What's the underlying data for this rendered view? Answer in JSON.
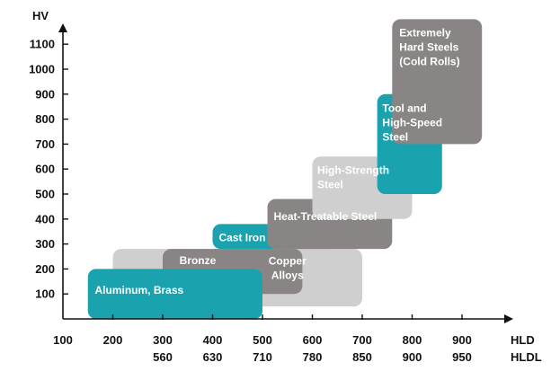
{
  "chart_data": {
    "type": "range-box",
    "title": "",
    "ylabel": "HV",
    "xlabels": [
      "HLD",
      "HLDL"
    ],
    "y_ticks": [
      100,
      200,
      300,
      400,
      500,
      600,
      700,
      800,
      900,
      1000,
      1100
    ],
    "x_ticks_hld": [
      100,
      200,
      300,
      400,
      500,
      600,
      700,
      800,
      900
    ],
    "x_ticks_hldl": [
      "",
      "",
      560,
      630,
      710,
      780,
      850,
      900,
      950
    ],
    "ylim": [
      0,
      1200
    ],
    "xlim_hld": [
      100,
      1000
    ],
    "colors": {
      "teal": "#1aa3ae",
      "light_gray": "#cfcfcf",
      "dark_gray": "#8a8585",
      "axis": "#111111"
    },
    "series": [
      {
        "label": [
          "Copper",
          "Alloys"
        ],
        "hld_range": [
          200,
          700
        ],
        "hv_range": [
          50,
          280
        ],
        "color": "light_gray"
      },
      {
        "label": [
          "Bronze"
        ],
        "hld_range": [
          300,
          580
        ],
        "hv_range": [
          100,
          280
        ],
        "color": "dark_gray"
      },
      {
        "label": [
          "Aluminum, Brass"
        ],
        "hld_range": [
          150,
          500
        ],
        "hv_range": [
          0,
          200
        ],
        "color": "teal"
      },
      {
        "label": [
          "Cast Iron"
        ],
        "hld_range": [
          400,
          650
        ],
        "hv_range": [
          280,
          380
        ],
        "color": "teal"
      },
      {
        "label": [
          "Heat-Treatable Steel"
        ],
        "hld_range": [
          510,
          760
        ],
        "hv_range": [
          280,
          480
        ],
        "color": "dark_gray"
      },
      {
        "label": [
          "High-Strength",
          "Steel"
        ],
        "hld_range": [
          600,
          800
        ],
        "hv_range": [
          400,
          650
        ],
        "color": "light_gray"
      },
      {
        "label": [
          "Tool and",
          "High-Speed",
          "Steel"
        ],
        "hld_range": [
          730,
          860
        ],
        "hv_range": [
          500,
          900
        ],
        "color": "teal"
      },
      {
        "label": [
          "Extremely",
          "Hard Steels",
          "(Cold Rolls)"
        ],
        "hld_range": [
          760,
          940
        ],
        "hv_range": [
          700,
          1200
        ],
        "color": "dark_gray"
      }
    ]
  }
}
